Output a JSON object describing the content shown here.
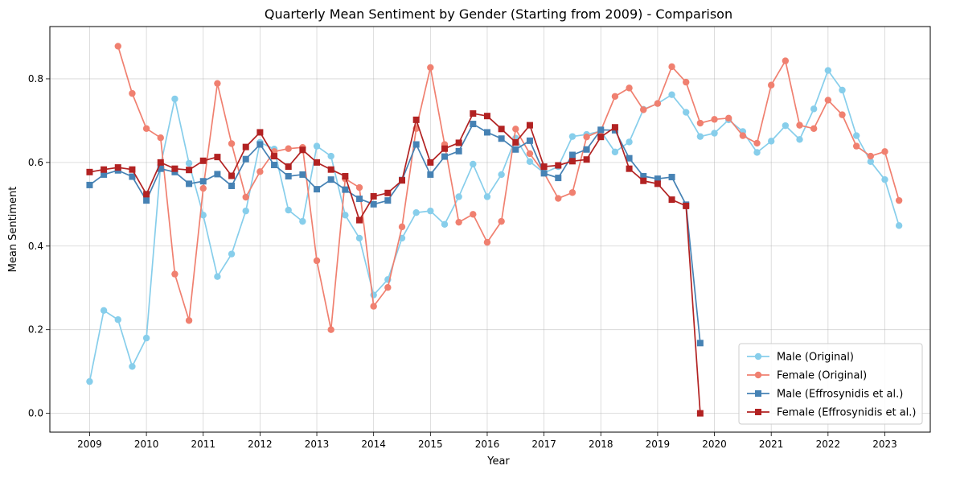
{
  "chart_data": {
    "type": "line",
    "title": "Quarterly Mean Sentiment by Gender (Starting from 2009) - Comparison",
    "xlabel": "Year",
    "ylabel": "Mean Sentiment",
    "xlim": [
      2008.3,
      2023.8
    ],
    "ylim": [
      -0.045,
      0.925
    ],
    "x_ticks": [
      2009,
      2010,
      2011,
      2012,
      2013,
      2014,
      2015,
      2016,
      2017,
      2018,
      2019,
      2020,
      2021,
      2022,
      2023
    ],
    "y_ticks": [
      0.0,
      0.2,
      0.4,
      0.6,
      0.8
    ],
    "y_tick_labels": [
      "0.0",
      "0.2",
      "0.4",
      "0.6",
      "0.8"
    ],
    "grid": true,
    "legend_position": "lower-right",
    "series": [
      {
        "name": "Male (Original)",
        "color": "#87CEEB",
        "marker": "circle",
        "start": 2009.0,
        "step": 0.25,
        "values": [
          0.076,
          0.246,
          0.224,
          0.112,
          0.18,
          0.593,
          0.752,
          0.598,
          0.474,
          0.327,
          0.381,
          0.484,
          0.648,
          0.632,
          0.486,
          0.459,
          0.639,
          0.615,
          0.474,
          0.419,
          0.283,
          0.32,
          0.419,
          0.48,
          0.484,
          0.452,
          0.518,
          0.596,
          0.518,
          0.571,
          0.658,
          0.602,
          0.575,
          0.59,
          0.662,
          0.667,
          0.675,
          0.625,
          0.649,
          0.727,
          0.741,
          0.762,
          0.72,
          0.662,
          0.67,
          0.702,
          0.674,
          0.624,
          0.651,
          0.688,
          0.655,
          0.728,
          0.82,
          0.773,
          0.664,
          0.602,
          0.559,
          0.449
        ]
      },
      {
        "name": "Female (Original)",
        "color": "#F08070",
        "marker": "circle",
        "start": 2009.5,
        "step": 0.25,
        "values": [
          0.878,
          0.765,
          0.681,
          0.659,
          0.333,
          0.222,
          0.538,
          0.789,
          0.645,
          0.517,
          0.578,
          0.626,
          0.633,
          0.636,
          0.365,
          0.2,
          0.561,
          0.54,
          0.256,
          0.301,
          0.446,
          0.681,
          0.827,
          0.643,
          0.457,
          0.476,
          0.409,
          0.459,
          0.68,
          0.621,
          0.575,
          0.514,
          0.528,
          0.661,
          0.676,
          0.758,
          0.778,
          0.726,
          0.741,
          0.829,
          0.792,
          0.694,
          0.703,
          0.706,
          0.664,
          0.646,
          0.785,
          0.843,
          0.689,
          0.681,
          0.749,
          0.714,
          0.639,
          0.615,
          0.626,
          0.509
        ]
      },
      {
        "name": "Male (Effrosynidis et al.)",
        "color": "#4682B4",
        "marker": "square",
        "start": 2009.0,
        "step": 0.25,
        "values": [
          0.546,
          0.571,
          0.581,
          0.566,
          0.509,
          0.585,
          0.577,
          0.549,
          0.555,
          0.572,
          0.544,
          0.608,
          0.643,
          0.594,
          0.567,
          0.571,
          0.536,
          0.559,
          0.535,
          0.513,
          0.5,
          0.509,
          0.558,
          0.643,
          0.571,
          0.614,
          0.627,
          0.692,
          0.672,
          0.657,
          0.631,
          0.652,
          0.574,
          0.563,
          0.618,
          0.631,
          0.678,
          0.677,
          0.61,
          0.567,
          0.561,
          0.565,
          0.499,
          0.168
        ]
      },
      {
        "name": "Female (Effrosynidis et al.)",
        "color": "#B22222",
        "marker": "square",
        "start": 2009.0,
        "step": 0.25,
        "values": [
          0.577,
          0.583,
          0.588,
          0.583,
          0.524,
          0.6,
          0.585,
          0.582,
          0.604,
          0.613,
          0.568,
          0.637,
          0.672,
          0.615,
          0.59,
          0.63,
          0.6,
          0.583,
          0.567,
          0.462,
          0.519,
          0.527,
          0.557,
          0.702,
          0.6,
          0.633,
          0.647,
          0.717,
          0.711,
          0.68,
          0.648,
          0.689,
          0.59,
          0.593,
          0.603,
          0.607,
          0.661,
          0.684,
          0.585,
          0.556,
          0.549,
          0.511,
          0.496,
          0.0
        ]
      }
    ]
  }
}
